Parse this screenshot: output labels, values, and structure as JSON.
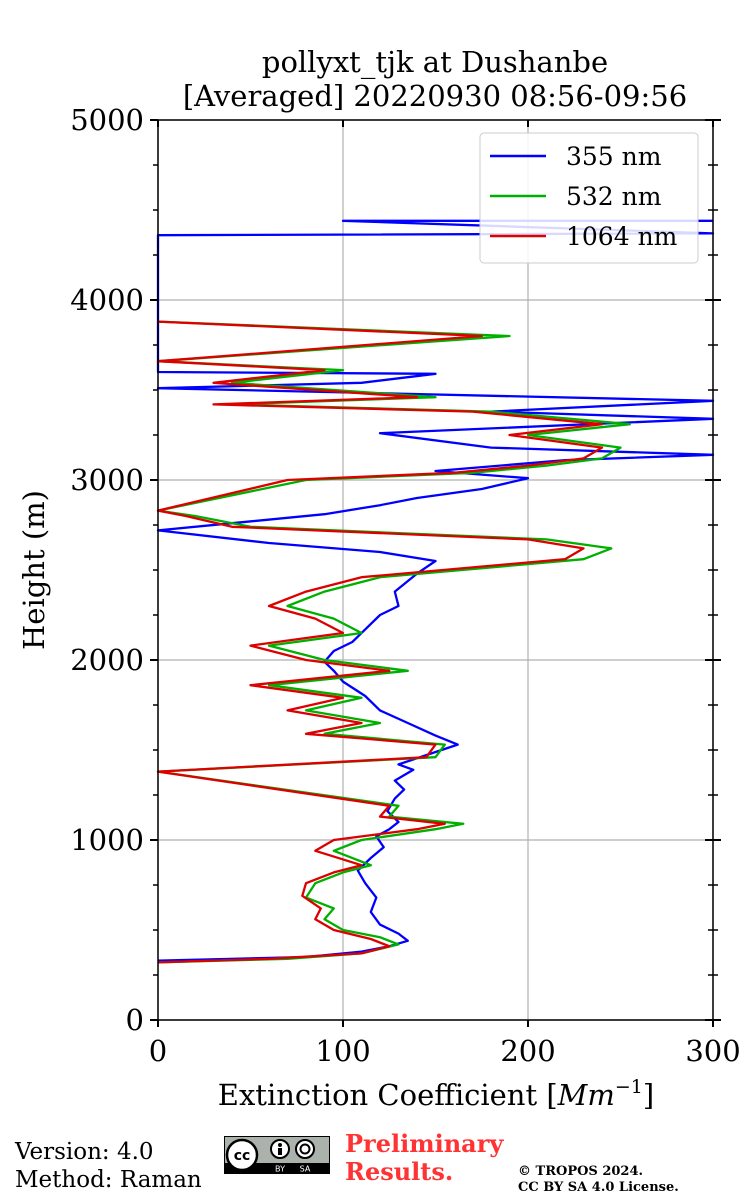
{
  "chart_data": {
    "type": "line",
    "title": [
      "pollyxt_tjk at Dushanbe",
      "[Averaged] 20220930 08:56-09:56"
    ],
    "xlabel": "Extinction Coefficient [",
    "xlabel_unit": "Mm",
    "xlabel_exp": "−1",
    "xlabel_close": "]",
    "ylabel": "Height (m)",
    "xlim": [
      0,
      300
    ],
    "ylim": [
      0,
      5000
    ],
    "xticks": [
      0,
      100,
      200,
      300
    ],
    "yticks": [
      0,
      1000,
      2000,
      3000,
      4000,
      5000
    ],
    "xtick_labels": [
      "0",
      "100",
      "200",
      "300"
    ],
    "ytick_labels": [
      "0",
      "1000",
      "2000",
      "3000",
      "4000",
      "5000"
    ],
    "grid": true,
    "legend_position": "top-right",
    "series": [
      {
        "name": "355 nm",
        "color": "#0000ff",
        "points": [
          [
            0,
            330
          ],
          [
            80,
            350
          ],
          [
            110,
            380
          ],
          [
            125,
            410
          ],
          [
            135,
            440
          ],
          [
            130,
            480
          ],
          [
            120,
            530
          ],
          [
            115,
            600
          ],
          [
            118,
            680
          ],
          [
            112,
            760
          ],
          [
            108,
            830
          ],
          [
            115,
            900
          ],
          [
            122,
            960
          ],
          [
            118,
            1020
          ],
          [
            125,
            1060
          ],
          [
            130,
            1100
          ],
          [
            124,
            1160
          ],
          [
            128,
            1230
          ],
          [
            133,
            1280
          ],
          [
            128,
            1330
          ],
          [
            138,
            1390
          ],
          [
            130,
            1420
          ],
          [
            162,
            1530
          ],
          [
            150,
            1580
          ],
          [
            135,
            1650
          ],
          [
            120,
            1720
          ],
          [
            112,
            1800
          ],
          [
            100,
            1880
          ],
          [
            95,
            1940
          ],
          [
            90,
            1990
          ],
          [
            95,
            2050
          ],
          [
            105,
            2100
          ],
          [
            112,
            2170
          ],
          [
            120,
            2250
          ],
          [
            130,
            2300
          ],
          [
            128,
            2380
          ],
          [
            140,
            2480
          ],
          [
            150,
            2550
          ],
          [
            120,
            2600
          ],
          [
            60,
            2650
          ],
          [
            0,
            2720
          ],
          [
            40,
            2760
          ],
          [
            90,
            2810
          ],
          [
            120,
            2860
          ],
          [
            140,
            2900
          ],
          [
            175,
            2950
          ],
          [
            200,
            3010
          ],
          [
            150,
            3050
          ],
          [
            220,
            3110
          ],
          [
            300,
            3140
          ],
          [
            180,
            3180
          ],
          [
            120,
            3260
          ],
          [
            300,
            3340
          ],
          [
            180,
            3380
          ],
          [
            300,
            3440
          ],
          [
            0,
            3510
          ],
          [
            110,
            3540
          ],
          [
            150,
            3590
          ],
          [
            0,
            3600
          ],
          [
            0,
            4360
          ],
          [
            300,
            4370
          ],
          [
            100,
            4440
          ],
          [
            300,
            4440
          ]
        ]
      },
      {
        "name": "532 nm",
        "color": "#00b000",
        "points": [
          [
            0,
            320
          ],
          [
            70,
            340
          ],
          [
            110,
            370
          ],
          [
            130,
            420
          ],
          [
            120,
            460
          ],
          [
            100,
            500
          ],
          [
            90,
            560
          ],
          [
            95,
            620
          ],
          [
            80,
            680
          ],
          [
            85,
            760
          ],
          [
            100,
            820
          ],
          [
            115,
            860
          ],
          [
            95,
            940
          ],
          [
            110,
            1000
          ],
          [
            150,
            1060
          ],
          [
            165,
            1090
          ],
          [
            125,
            1130
          ],
          [
            130,
            1190
          ],
          [
            0,
            1380
          ],
          [
            150,
            1460
          ],
          [
            155,
            1530
          ],
          [
            90,
            1590
          ],
          [
            120,
            1650
          ],
          [
            80,
            1720
          ],
          [
            110,
            1790
          ],
          [
            60,
            1860
          ],
          [
            135,
            1940
          ],
          [
            90,
            2000
          ],
          [
            60,
            2080
          ],
          [
            110,
            2150
          ],
          [
            95,
            2230
          ],
          [
            70,
            2300
          ],
          [
            90,
            2380
          ],
          [
            120,
            2460
          ],
          [
            230,
            2560
          ],
          [
            245,
            2620
          ],
          [
            210,
            2670
          ],
          [
            50,
            2740
          ],
          [
            20,
            2800
          ],
          [
            0,
            2830
          ],
          [
            80,
            3000
          ],
          [
            170,
            3040
          ],
          [
            210,
            3080
          ],
          [
            240,
            3120
          ],
          [
            250,
            3180
          ],
          [
            200,
            3250
          ],
          [
            255,
            3310
          ],
          [
            180,
            3380
          ],
          [
            40,
            3420
          ],
          [
            150,
            3460
          ],
          [
            40,
            3540
          ],
          [
            100,
            3610
          ],
          [
            0,
            3660
          ],
          [
            190,
            3800
          ],
          [
            0,
            3880
          ]
        ]
      },
      {
        "name": "1064 nm",
        "color": "#dd0000",
        "points": [
          [
            0,
            320
          ],
          [
            60,
            340
          ],
          [
            110,
            370
          ],
          [
            125,
            410
          ],
          [
            115,
            450
          ],
          [
            95,
            500
          ],
          [
            85,
            560
          ],
          [
            88,
            620
          ],
          [
            78,
            690
          ],
          [
            80,
            760
          ],
          [
            95,
            820
          ],
          [
            110,
            860
          ],
          [
            85,
            940
          ],
          [
            95,
            1000
          ],
          [
            140,
            1060
          ],
          [
            155,
            1090
          ],
          [
            120,
            1130
          ],
          [
            125,
            1190
          ],
          [
            0,
            1380
          ],
          [
            145,
            1460
          ],
          [
            150,
            1530
          ],
          [
            80,
            1590
          ],
          [
            110,
            1650
          ],
          [
            70,
            1720
          ],
          [
            100,
            1790
          ],
          [
            50,
            1860
          ],
          [
            125,
            1940
          ],
          [
            80,
            2000
          ],
          [
            50,
            2080
          ],
          [
            100,
            2150
          ],
          [
            85,
            2230
          ],
          [
            60,
            2300
          ],
          [
            80,
            2380
          ],
          [
            110,
            2460
          ],
          [
            220,
            2560
          ],
          [
            230,
            2620
          ],
          [
            200,
            2670
          ],
          [
            40,
            2740
          ],
          [
            15,
            2800
          ],
          [
            0,
            2830
          ],
          [
            70,
            3000
          ],
          [
            160,
            3040
          ],
          [
            200,
            3080
          ],
          [
            230,
            3120
          ],
          [
            240,
            3180
          ],
          [
            190,
            3250
          ],
          [
            240,
            3310
          ],
          [
            170,
            3380
          ],
          [
            30,
            3420
          ],
          [
            140,
            3460
          ],
          [
            30,
            3540
          ],
          [
            90,
            3610
          ],
          [
            0,
            3660
          ],
          [
            175,
            3800
          ],
          [
            0,
            3880
          ]
        ]
      }
    ]
  },
  "footer": {
    "version": "Version: 4.0",
    "method": "Method: Raman",
    "preliminary_line1": "Preliminary",
    "preliminary_line2": "Results.",
    "copyright_line1": "© TROPOS 2024.",
    "copyright_line2": "CC BY SA 4.0 License.",
    "cc_text": "cc",
    "cc_by": "BY",
    "cc_sa": "SA"
  }
}
